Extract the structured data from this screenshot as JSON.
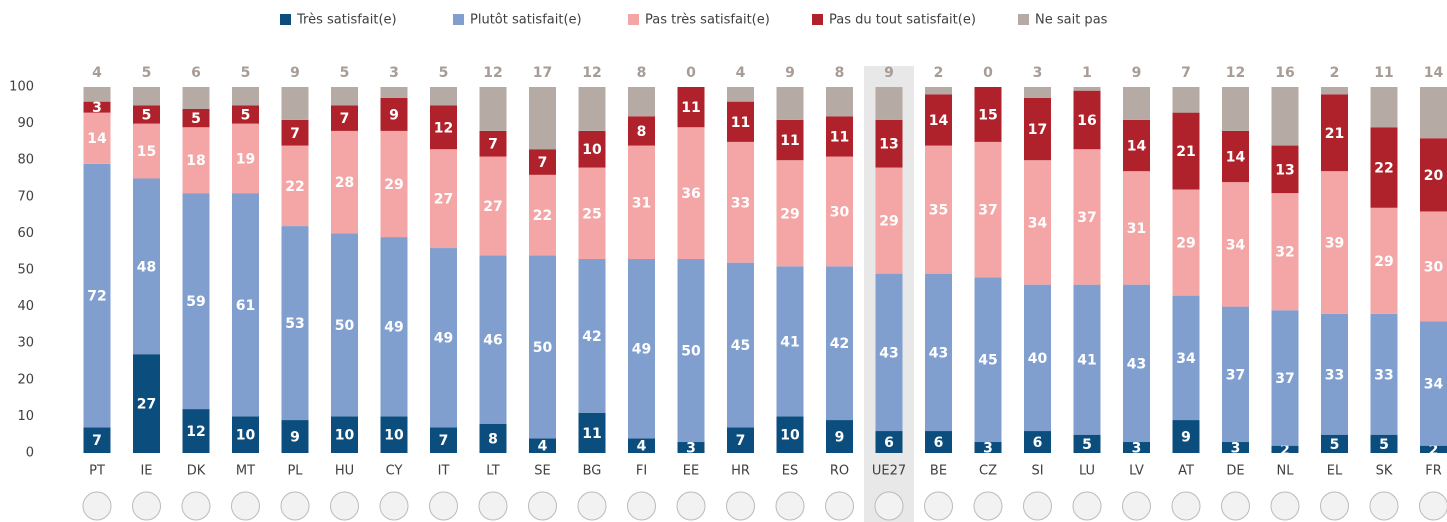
{
  "chart_data": {
    "type": "stacked_bar",
    "categories": [
      "PT",
      "IE",
      "DK",
      "MT",
      "PL",
      "HU",
      "CY",
      "IT",
      "LT",
      "SE",
      "BG",
      "FI",
      "EE",
      "HR",
      "ES",
      "RO",
      "UE27",
      "BE",
      "CZ",
      "SI",
      "LU",
      "LV",
      "AT",
      "DE",
      "NL",
      "EL",
      "SK",
      "FR"
    ],
    "series": [
      {
        "name": "Très satisfait(e)",
        "color": "#0b4d7d",
        "values": [
          7,
          27,
          12,
          10,
          9,
          10,
          10,
          7,
          8,
          4,
          11,
          4,
          3,
          7,
          10,
          9,
          6,
          6,
          3,
          6,
          5,
          3,
          9,
          3,
          2,
          5,
          5,
          2
        ]
      },
      {
        "name": "Plutôt satisfait(e)",
        "color": "#809fcf",
        "values": [
          72,
          48,
          59,
          61,
          53,
          50,
          49,
          49,
          46,
          50,
          42,
          49,
          50,
          45,
          41,
          42,
          43,
          43,
          45,
          40,
          41,
          43,
          34,
          37,
          37,
          33,
          33,
          34
        ]
      },
      {
        "name": "Pas très satisfait(e)",
        "color": "#f4a5a5",
        "values": [
          14,
          15,
          18,
          19,
          22,
          28,
          29,
          27,
          27,
          22,
          25,
          31,
          36,
          33,
          29,
          30,
          29,
          35,
          37,
          34,
          37,
          31,
          29,
          34,
          32,
          39,
          29,
          30
        ]
      },
      {
        "name": "Pas du tout satisfait(e)",
        "color": "#b0222b",
        "values": [
          3,
          5,
          5,
          5,
          7,
          7,
          9,
          12,
          7,
          7,
          10,
          8,
          11,
          11,
          11,
          11,
          13,
          14,
          15,
          17,
          16,
          14,
          21,
          14,
          13,
          21,
          22,
          20
        ]
      },
      {
        "name": "Ne sait pas",
        "color": "#b6aaa4",
        "values": [
          4,
          5,
          6,
          5,
          9,
          5,
          3,
          5,
          12,
          17,
          12,
          8,
          0,
          4,
          9,
          8,
          9,
          2,
          0,
          3,
          1,
          9,
          7,
          12,
          16,
          2,
          11,
          14
        ]
      }
    ],
    "ylim": [
      0,
      100
    ],
    "yticks": [
      0,
      10,
      20,
      30,
      40,
      50,
      60,
      70,
      80,
      90,
      100
    ],
    "grid": false,
    "legend_position": "top"
  }
}
